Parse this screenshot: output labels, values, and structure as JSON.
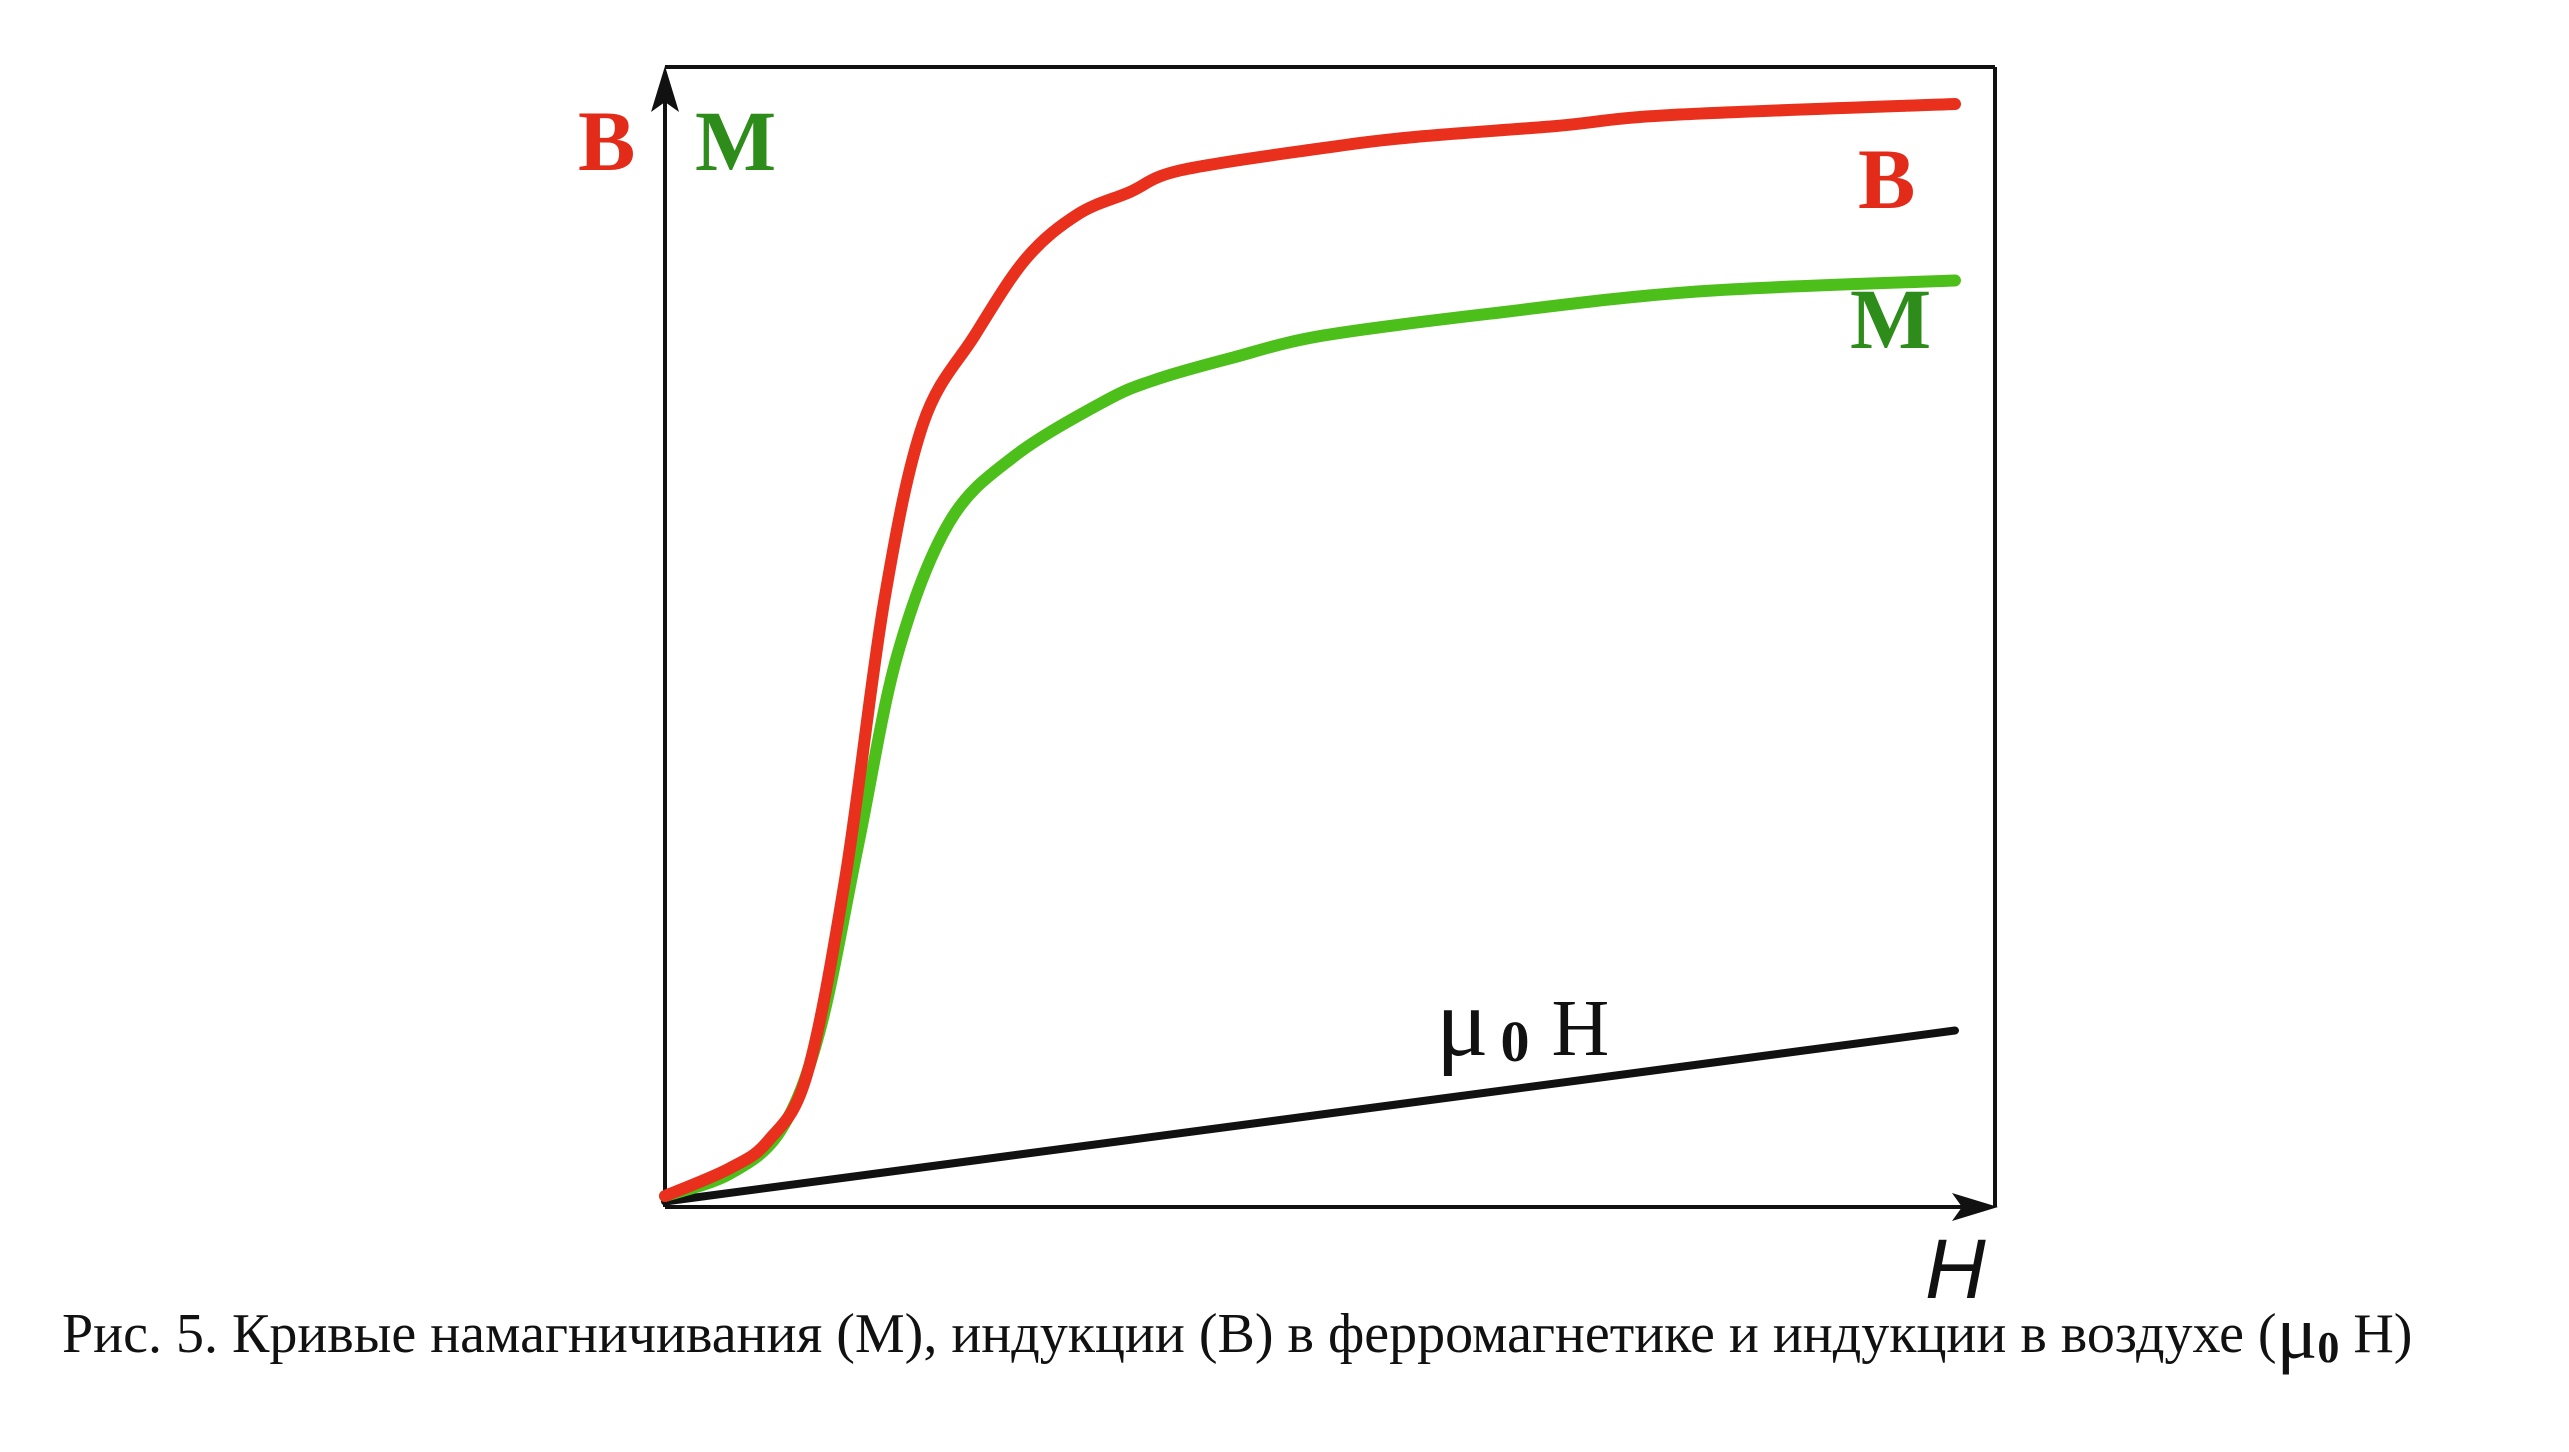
{
  "chart_data": {
    "type": "line",
    "title": "",
    "xlabel": "H",
    "ylabel_left": "B",
    "ylabel_right": "M",
    "xlim": [
      0,
      1
    ],
    "ylim": [
      0,
      1
    ],
    "grid": false,
    "legend": "none",
    "series": [
      {
        "name": "B",
        "color": "#e8301c",
        "x": [
          0,
          0.05,
          0.08,
          0.11,
          0.14,
          0.17,
          0.2,
          0.24,
          0.28,
          0.32,
          0.36,
          0.4,
          0.51,
          0.58,
          0.69,
          0.78,
          1.0
        ],
        "y": [
          0.01,
          0.035,
          0.06,
          0.12,
          0.3,
          0.55,
          0.71,
          0.79,
          0.86,
          0.9,
          0.92,
          0.94,
          0.96,
          0.97,
          0.98,
          0.99,
          1.0
        ]
      },
      {
        "name": "M",
        "color": "#4cbf1a",
        "x": [
          0,
          0.05,
          0.09,
          0.12,
          0.15,
          0.18,
          0.22,
          0.27,
          0.34,
          0.38,
          0.44,
          0.51,
          0.64,
          0.8,
          1.0
        ],
        "y": [
          0.01,
          0.03,
          0.07,
          0.16,
          0.33,
          0.5,
          0.62,
          0.68,
          0.73,
          0.75,
          0.77,
          0.79,
          0.81,
          0.83,
          0.84
        ]
      },
      {
        "name": "μ0H",
        "color": "#111111",
        "x": [
          0,
          1.0
        ],
        "y": [
          0.005,
          0.16
        ]
      }
    ],
    "annotations": [
      {
        "text": "B",
        "series": "B",
        "color": "#e32b1a"
      },
      {
        "text": "M",
        "series": "M",
        "color": "#2e8c1a"
      },
      {
        "text": "μ",
        "sub": "0",
        "tail": "H",
        "series": "μ0H",
        "color": "#111111"
      }
    ]
  },
  "caption": {
    "text_main": "Рис. 5. Кривые намагничивания (М), индукции (В) в ферромагнетике и индукции в воздухе (",
    "mu": "μ",
    "sub": "0",
    "text_tail": " H)"
  }
}
